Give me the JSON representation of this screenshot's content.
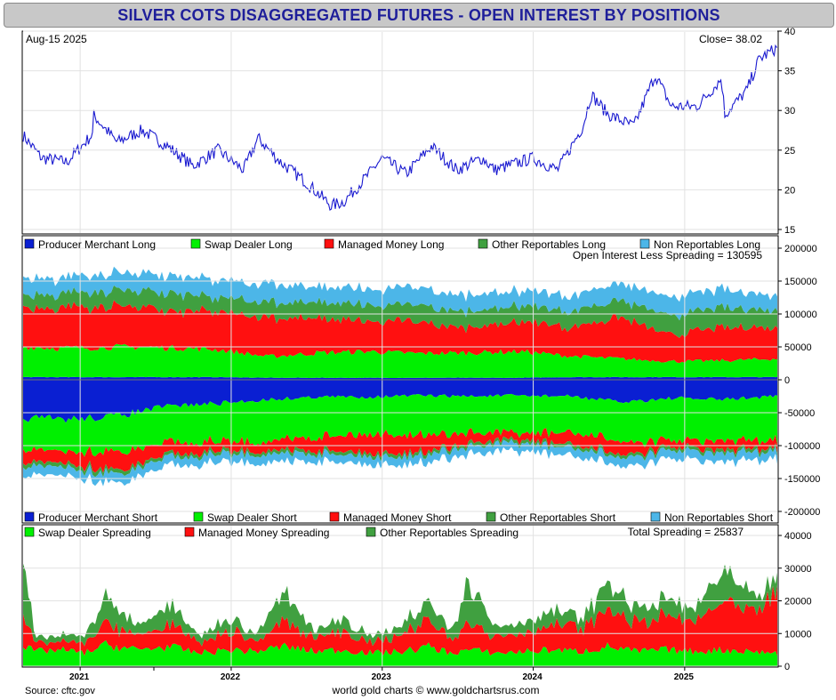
{
  "title": "SILVER COTS DISAGGREGATED FUTURES - OPEN INTEREST BY POSITIONS",
  "footer": {
    "source": "Source: cftc.gov",
    "credit": "world gold charts © www.goldchartsrus.com"
  },
  "chart_data": [
    {
      "type": "line",
      "panel": "price",
      "date_label": "Aug-15  2025",
      "close_label": "Close= 38.02",
      "ylim": [
        15,
        40
      ],
      "yticks": [
        15,
        20,
        25,
        30,
        35,
        40
      ],
      "line_color": "#1a1ad0",
      "series": [
        {
          "x": [
            "2020-08-14",
            "2020-09-30",
            "2020-11-30",
            "2021-01-31",
            "2021-02-01",
            "2021-03-31",
            "2021-05-31",
            "2021-07-31",
            "2021-09-30",
            "2021-11-30",
            "2022-01-31",
            "2022-03-07",
            "2022-04-30",
            "2022-06-30",
            "2022-08-31",
            "2022-09-30",
            "2022-11-30",
            "2022-12-31",
            "2023-02-28",
            "2023-04-30",
            "2023-06-30",
            "2023-08-31",
            "2023-09-30",
            "2023-10-31",
            "2023-12-31",
            "2024-02-29",
            "2024-04-30",
            "2024-05-20",
            "2024-06-30",
            "2024-08-31",
            "2024-10-22",
            "2024-11-30",
            "2025-01-31",
            "2025-03-31",
            "2025-04-08",
            "2025-05-31",
            "2025-06-30",
            "2025-07-31",
            "2025-08-15"
          ],
          "values": [
            27,
            24,
            23.5,
            27,
            29.5,
            26,
            27.5,
            25.5,
            23,
            25,
            22.5,
            26.5,
            23.5,
            21,
            18,
            18.5,
            22,
            24,
            22,
            25.5,
            22.5,
            24,
            22.5,
            23,
            24,
            22.5,
            28,
            32,
            29.5,
            28,
            34.5,
            30.5,
            30.5,
            34,
            29.5,
            32.5,
            36.5,
            37.5,
            38
          ]
        }
      ]
    },
    {
      "type": "area",
      "panel": "open_interest",
      "annotation": "Open Interest Less Spreading = 130595",
      "ylim": [
        -200000,
        200000
      ],
      "yticks": [
        -200000,
        -150000,
        -100000,
        -50000,
        0,
        50000,
        100000,
        150000,
        200000
      ],
      "dates": [
        "2020-08-14",
        "2020-11-30",
        "2021-03-31",
        "2021-07-31",
        "2021-11-30",
        "2022-03-31",
        "2022-07-31",
        "2022-11-30",
        "2023-03-31",
        "2023-07-31",
        "2023-11-30",
        "2024-03-31",
        "2024-07-31",
        "2024-11-30",
        "2025-03-31",
        "2025-08-15"
      ],
      "long_series": [
        {
          "name": "Producer Merchant Long",
          "color": "#0a1fd2",
          "values": [
            4000,
            4000,
            4000,
            4000,
            4000,
            3000,
            3000,
            3000,
            3000,
            3000,
            3000,
            4000,
            4000,
            4000,
            4000,
            4000
          ]
        },
        {
          "name": "Swap Dealer Long",
          "color": "#00f000",
          "values": [
            46000,
            44000,
            46000,
            45000,
            42000,
            32000,
            38000,
            40000,
            37000,
            38000,
            40000,
            32000,
            28000,
            24000,
            25000,
            28000
          ]
        },
        {
          "name": "Managed Money Long",
          "color": "#ff1010",
          "values": [
            60000,
            62000,
            63000,
            56000,
            57000,
            60000,
            52000,
            45000,
            48000,
            38000,
            46000,
            44000,
            62000,
            40000,
            50000,
            48000
          ]
        },
        {
          "name": "Other Reportables Long",
          "color": "#40a040",
          "values": [
            20000,
            22000,
            24000,
            26000,
            22000,
            24000,
            24000,
            24000,
            26000,
            24000,
            24000,
            24000,
            26000,
            28000,
            30000,
            27000
          ]
        },
        {
          "name": "Non Reportables Long",
          "color": "#4cb6e8",
          "values": [
            25000,
            24000,
            26000,
            27000,
            26000,
            28000,
            24000,
            24000,
            26000,
            24000,
            23000,
            24000,
            26000,
            28000,
            27000,
            24000
          ]
        }
      ],
      "short_series": [
        {
          "name": "Producer Merchant Short",
          "color": "#0a1fd2",
          "values": [
            58000,
            60000,
            55000,
            40000,
            36000,
            30000,
            26000,
            26000,
            24000,
            25000,
            24000,
            25000,
            34000,
            28000,
            30000,
            25000
          ]
        },
        {
          "name": "Swap Dealer Short",
          "color": "#00f000",
          "values": [
            48000,
            50000,
            54000,
            55000,
            58000,
            62000,
            60000,
            55000,
            60000,
            56000,
            58000,
            55000,
            60000,
            65000,
            64000,
            68000
          ]
        },
        {
          "name": "Managed Money Short",
          "color": "#ff1010",
          "values": [
            20000,
            18000,
            28000,
            18000,
            14000,
            14000,
            20000,
            30000,
            26000,
            16000,
            10000,
            18000,
            20000,
            10000,
            14000,
            12000
          ]
        },
        {
          "name": "Other Reportables Short",
          "color": "#40a040",
          "values": [
            6000,
            6000,
            6000,
            5000,
            5000,
            5000,
            5000,
            5000,
            5000,
            5000,
            5000,
            5000,
            5000,
            5000,
            5000,
            5000
          ]
        },
        {
          "name": "Non Reportables Short",
          "color": "#4cb6e8",
          "values": [
            14000,
            13000,
            14000,
            13000,
            12000,
            13000,
            12000,
            12000,
            12000,
            11000,
            12000,
            12000,
            13000,
            13000,
            13000,
            12000
          ]
        }
      ]
    },
    {
      "type": "area",
      "panel": "spreading",
      "annotation": "Total Spreading = 25837",
      "ylim": [
        0,
        40000
      ],
      "yticks": [
        0,
        10000,
        20000,
        30000,
        40000
      ],
      "xtick_labels": [
        "2021",
        "2022",
        "2023",
        "2024",
        "2025"
      ],
      "dates": [
        "2020-08-14",
        "2020-09-15",
        "2020-11-15",
        "2021-01-10",
        "2021-03-05",
        "2021-05-20",
        "2021-08-01",
        "2021-10-15",
        "2021-12-31",
        "2022-02-25",
        "2022-05-10",
        "2022-07-20",
        "2022-09-30",
        "2022-12-10",
        "2023-02-20",
        "2023-04-25",
        "2023-06-15",
        "2023-07-28",
        "2023-10-05",
        "2023-12-10",
        "2024-02-15",
        "2024-04-25",
        "2024-07-01",
        "2024-09-05",
        "2024-11-15",
        "2025-01-25",
        "2025-04-05",
        "2025-06-10",
        "2025-08-15"
      ],
      "series": [
        {
          "name": "Swap Dealer Spreading",
          "color": "#00f000",
          "values": [
            6000,
            4500,
            5000,
            4000,
            6500,
            5000,
            6000,
            4000,
            5000,
            4500,
            6000,
            4500,
            5000,
            4000,
            4500,
            6000,
            4000,
            5000,
            4000,
            4500,
            5000,
            4500,
            6000,
            4500,
            5000,
            4500,
            5000,
            4500,
            4000
          ]
        },
        {
          "name": "Managed Money Spreading",
          "color": "#ff1010",
          "values": [
            10000,
            2000,
            3000,
            2500,
            7000,
            4000,
            7000,
            3000,
            6000,
            3000,
            8000,
            4000,
            6000,
            3000,
            5000,
            8000,
            4500,
            9000,
            5000,
            6000,
            8000,
            7000,
            12000,
            8000,
            10000,
            9000,
            15000,
            11000,
            18000
          ]
        },
        {
          "name": "Other Reportables Spreading",
          "color": "#40a040",
          "values": [
            18000,
            1500,
            2000,
            2000,
            8000,
            3000,
            6000,
            2000,
            4000,
            2000,
            9000,
            2500,
            4000,
            2000,
            3000,
            5000,
            3000,
            12000,
            3000,
            3000,
            4000,
            3000,
            8000,
            4000,
            5000,
            4000,
            9000,
            5000,
            4000
          ]
        }
      ]
    }
  ]
}
